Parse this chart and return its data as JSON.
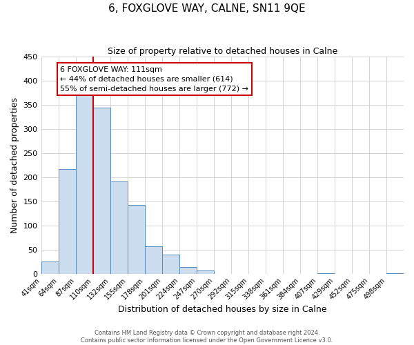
{
  "title": "6, FOXGLOVE WAY, CALNE, SN11 9QE",
  "subtitle": "Size of property relative to detached houses in Calne",
  "xlabel": "Distribution of detached houses by size in Calne",
  "ylabel": "Number of detached properties",
  "bin_labels": [
    "41sqm",
    "64sqm",
    "87sqm",
    "110sqm",
    "132sqm",
    "155sqm",
    "178sqm",
    "201sqm",
    "224sqm",
    "247sqm",
    "270sqm",
    "292sqm",
    "315sqm",
    "338sqm",
    "361sqm",
    "384sqm",
    "407sqm",
    "429sqm",
    "452sqm",
    "475sqm",
    "498sqm"
  ],
  "bar_heights": [
    25,
    217,
    373,
    344,
    191,
    143,
    57,
    40,
    14,
    6,
    0,
    0,
    0,
    0,
    0,
    0,
    1,
    0,
    0,
    0,
    1
  ],
  "bar_color": "#ccddf0",
  "bar_edge_color": "#5588bb",
  "red_line_index": 3,
  "annotation_text": "6 FOXGLOVE WAY: 111sqm\n← 44% of detached houses are smaller (614)\n55% of semi-detached houses are larger (772) →",
  "annotation_box_color": "#ffffff",
  "annotation_box_edge_color": "#cc0000",
  "red_line_color": "#cc0000",
  "ylim": [
    0,
    450
  ],
  "yticks": [
    0,
    50,
    100,
    150,
    200,
    250,
    300,
    350,
    400,
    450
  ],
  "footer_line1": "Contains HM Land Registry data © Crown copyright and database right 2024.",
  "footer_line2": "Contains public sector information licensed under the Open Government Licence v3.0.",
  "background_color": "#ffffff",
  "grid_color": "#cccccc",
  "title_fontsize": 11,
  "subtitle_fontsize": 9,
  "axis_label_fontsize": 9,
  "tick_fontsize": 7,
  "annotation_fontsize": 8,
  "footer_fontsize": 6
}
